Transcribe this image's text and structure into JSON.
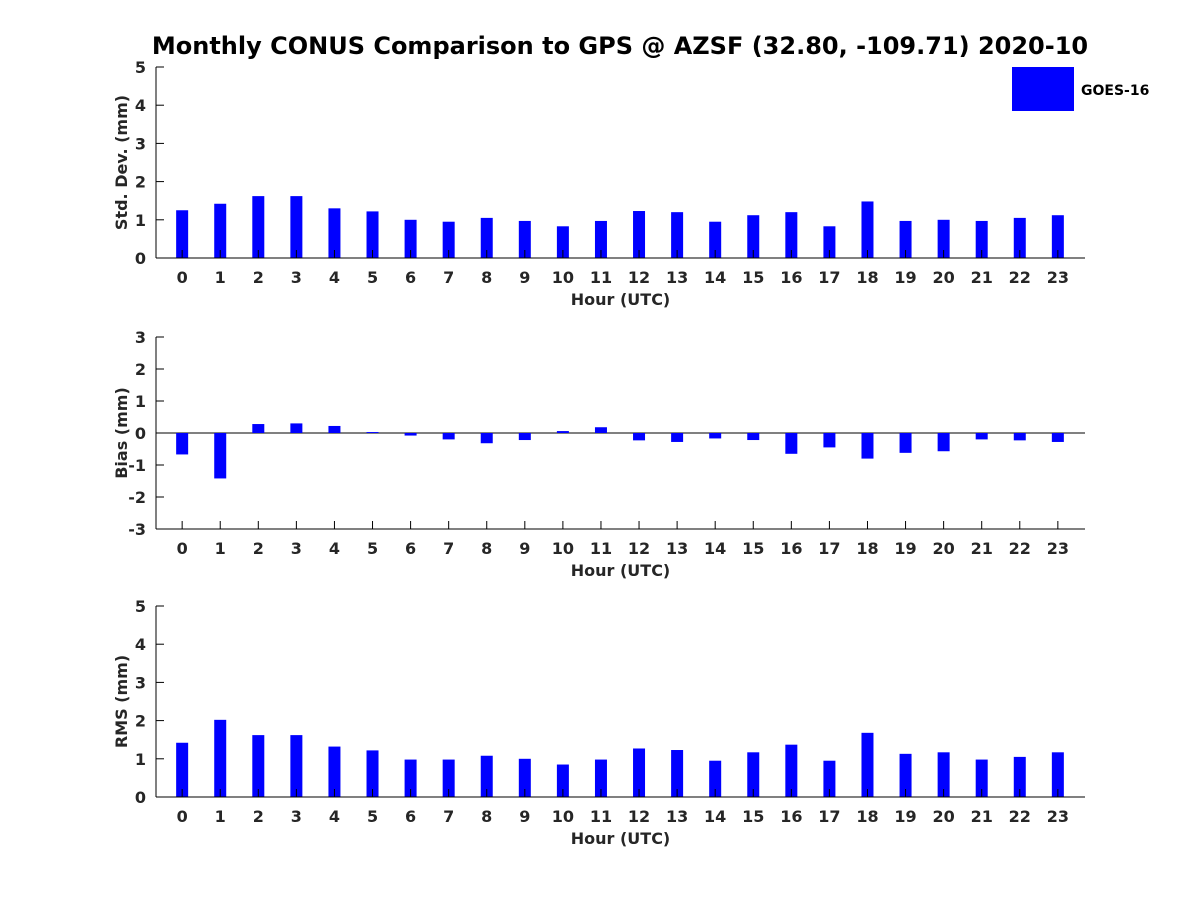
{
  "title": "Monthly CONUS Comparison to GPS @ AZSF (32.80, -109.71) 2020-10",
  "legend": {
    "label": "GOES-16",
    "color": "#0000ff",
    "placement": "top-right"
  },
  "chart_data": [
    {
      "type": "bar",
      "xlabel": "Hour (UTC)",
      "ylabel": "Std. Dev. (mm)",
      "ylim": [
        0,
        5
      ],
      "yticks": [
        0,
        1,
        2,
        3,
        4,
        5
      ],
      "categories": [
        "0",
        "1",
        "2",
        "3",
        "4",
        "5",
        "6",
        "7",
        "8",
        "9",
        "10",
        "11",
        "12",
        "13",
        "14",
        "15",
        "16",
        "17",
        "18",
        "19",
        "20",
        "21",
        "22",
        "23"
      ],
      "series": [
        {
          "name": "GOES-16",
          "values": [
            1.25,
            1.42,
            1.62,
            1.62,
            1.3,
            1.22,
            1.0,
            0.95,
            1.05,
            0.97,
            0.83,
            0.97,
            1.23,
            1.2,
            0.95,
            1.12,
            1.2,
            0.83,
            1.48,
            0.97,
            1.0,
            0.97,
            1.05,
            1.12
          ]
        }
      ]
    },
    {
      "type": "bar",
      "xlabel": "Hour (UTC)",
      "ylabel": "Bias (mm)",
      "ylim": [
        -3,
        3
      ],
      "yticks": [
        -3,
        -2,
        -1,
        0,
        1,
        2,
        3
      ],
      "categories": [
        "0",
        "1",
        "2",
        "3",
        "4",
        "5",
        "6",
        "7",
        "8",
        "9",
        "10",
        "11",
        "12",
        "13",
        "14",
        "15",
        "16",
        "17",
        "18",
        "19",
        "20",
        "21",
        "22",
        "23"
      ],
      "series": [
        {
          "name": "GOES-16",
          "values": [
            -0.67,
            -1.42,
            0.28,
            0.3,
            0.22,
            0.03,
            -0.08,
            -0.2,
            -0.32,
            -0.22,
            0.06,
            0.18,
            -0.23,
            -0.28,
            -0.17,
            -0.22,
            -0.65,
            -0.45,
            -0.8,
            -0.62,
            -0.57,
            -0.2,
            -0.23,
            -0.28
          ]
        }
      ]
    },
    {
      "type": "bar",
      "xlabel": "Hour (UTC)",
      "ylabel": "RMS (mm)",
      "ylim": [
        0,
        5
      ],
      "yticks": [
        0,
        1,
        2,
        3,
        4,
        5
      ],
      "categories": [
        "0",
        "1",
        "2",
        "3",
        "4",
        "5",
        "6",
        "7",
        "8",
        "9",
        "10",
        "11",
        "12",
        "13",
        "14",
        "15",
        "16",
        "17",
        "18",
        "19",
        "20",
        "21",
        "22",
        "23"
      ],
      "series": [
        {
          "name": "GOES-16",
          "values": [
            1.42,
            2.02,
            1.62,
            1.62,
            1.32,
            1.22,
            0.98,
            0.98,
            1.08,
            1.0,
            0.85,
            0.98,
            1.27,
            1.23,
            0.95,
            1.17,
            1.37,
            0.95,
            1.68,
            1.13,
            1.17,
            0.98,
            1.05,
            1.17
          ]
        }
      ]
    }
  ]
}
